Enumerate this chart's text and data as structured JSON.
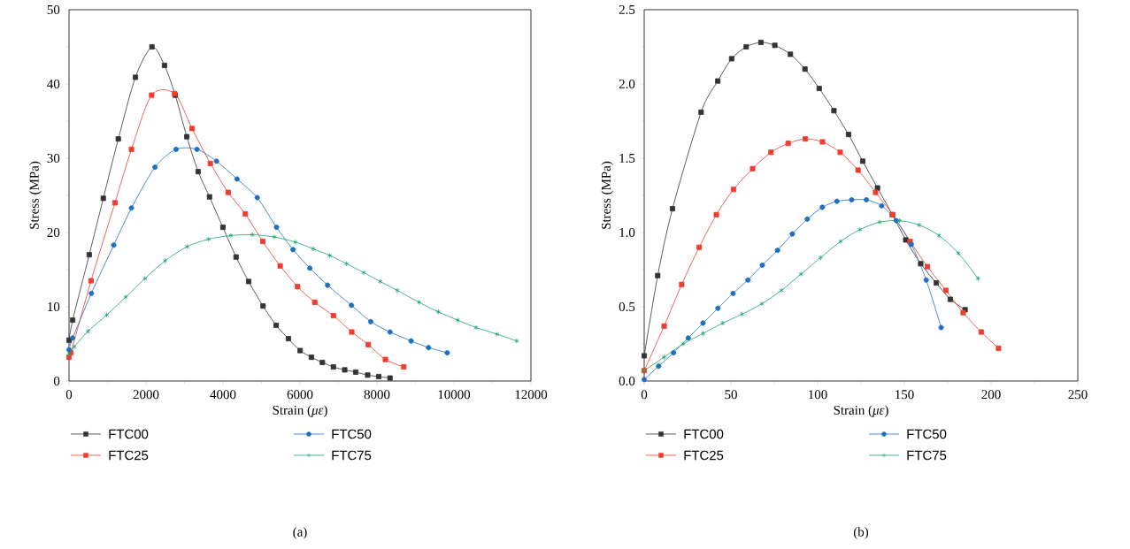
{
  "chart_data": [
    {
      "type": "line",
      "xlabel": "Strain (*με*)",
      "ylabel": "Stress (MPa)",
      "annotations": [
        "(a)"
      ],
      "xlim": [
        0,
        12000
      ],
      "ylim": [
        0,
        50
      ],
      "xticks": [
        0,
        2000,
        4000,
        6000,
        8000,
        10000,
        12000
      ],
      "yticks": [
        0,
        10,
        20,
        30,
        40,
        50
      ],
      "legend": "bottom",
      "grid": false,
      "line_style": "solid",
      "series": [
        {
          "name": "FTC00",
          "color": "#333333",
          "marker": "square",
          "x": [
            0,
            95,
            525,
            890,
            1280,
            1725,
            2154,
            2480,
            2758,
            3060,
            3355,
            3649,
            3998,
            4340,
            4666,
            5040,
            5382,
            5700,
            6002,
            6296,
            6582,
            6868,
            7162,
            7448,
            7758,
            8045,
            8339
          ],
          "values": [
            5.5,
            8.2,
            17.0,
            24.6,
            32.6,
            40.9,
            45.0,
            42.5,
            38.5,
            32.9,
            28.2,
            24.8,
            20.7,
            16.7,
            13.4,
            10.1,
            7.5,
            5.7,
            4.1,
            3.2,
            2.5,
            1.9,
            1.5,
            1.2,
            0.8,
            0.6,
            0.4
          ]
        },
        {
          "name": "FTC25",
          "color": "#f03c2e",
          "marker": "square",
          "x": [
            0,
            48,
            572,
            1192,
            1622,
            2146,
            2742,
            3196,
            3672,
            4134,
            4579,
            5032,
            5485,
            5938,
            6383,
            6868,
            7345,
            7774,
            8219,
            8696
          ],
          "values": [
            3.2,
            3.8,
            13.5,
            24.0,
            31.2,
            38.5,
            38.7,
            34.0,
            29.3,
            25.4,
            22.5,
            18.8,
            15.5,
            12.7,
            10.6,
            8.8,
            6.6,
            4.9,
            2.9,
            1.9
          ]
        },
        {
          "name": "FTC50",
          "color": "#1f6fbf",
          "marker": "circle",
          "x": [
            0,
            95,
            580,
            1161,
            1622,
            2234,
            2782,
            3323,
            3831,
            4364,
            4889,
            5390,
            5819,
            6256,
            6717,
            7337,
            7838,
            8339,
            8887,
            9340,
            9825
          ],
          "values": [
            4.2,
            5.8,
            11.8,
            18.3,
            23.3,
            28.8,
            31.2,
            31.2,
            29.6,
            27.2,
            24.7,
            20.7,
            17.7,
            15.2,
            12.9,
            10.2,
            8.0,
            6.6,
            5.4,
            4.5,
            3.8
          ]
        },
        {
          "name": "FTC75",
          "color": "#1aa56a",
          "marker": "cross",
          "x": [
            0,
            135,
            493,
            978,
            1471,
            1971,
            2496,
            3068,
            3625,
            4205,
            4762,
            5334,
            5882,
            6343,
            6773,
            7210,
            7655,
            8084,
            8529,
            9094,
            9595,
            10095,
            10572,
            11121,
            11630
          ],
          "values": [
            3.6,
            4.6,
            6.7,
            8.9,
            11.3,
            13.8,
            16.2,
            18.1,
            19.1,
            19.6,
            19.7,
            19.4,
            18.7,
            17.8,
            16.9,
            15.8,
            14.6,
            13.4,
            12.2,
            10.6,
            9.3,
            8.2,
            7.2,
            6.3,
            5.4
          ]
        }
      ]
    },
    {
      "type": "line",
      "xlabel": "Strain (*με*)",
      "ylabel": "Stress (MPa)",
      "annotations": [
        "(b)"
      ],
      "xlim": [
        0,
        250
      ],
      "ylim": [
        0,
        2.5
      ],
      "xticks": [
        0,
        50,
        100,
        150,
        200,
        250
      ],
      "yticks": [
        {
          "value": 0,
          "label": "0.0"
        },
        {
          "value": 0.5,
          "label": "0.5"
        },
        {
          "value": 1,
          "label": "1.0"
        },
        {
          "value": 1.5,
          "label": "1.5"
        },
        {
          "value": 2,
          "label": "2.0"
        },
        {
          "value": 2.5,
          "label": "2.5"
        }
      ],
      "legend": "bottom",
      "grid": false,
      "line_style": "solid",
      "series": [
        {
          "name": "FTC00",
          "color": "#333333",
          "marker": "square",
          "x": [
            0,
            7.8,
            16.3,
            32.8,
            42.4,
            50.4,
            58.8,
            67.3,
            75.3,
            84.3,
            92.7,
            100.9,
            109.4,
            117.8,
            126.0,
            134.5,
            143.1,
            150.8,
            159.4,
            168.4,
            176.5,
            185.0
          ],
          "values": [
            0.17,
            0.71,
            1.16,
            1.81,
            2.02,
            2.17,
            2.25,
            2.28,
            2.26,
            2.2,
            2.1,
            1.97,
            1.82,
            1.66,
            1.48,
            1.3,
            1.12,
            0.95,
            0.79,
            0.66,
            0.55,
            0.48
          ]
        },
        {
          "name": "FTC25",
          "color": "#f03c2e",
          "marker": "square",
          "x": [
            0,
            11.5,
            21.6,
            31.7,
            41.6,
            51.5,
            62.5,
            73.1,
            83.0,
            92.9,
            102.8,
            113.0,
            123.3,
            133.4,
            143.3,
            153.3,
            163.3,
            174.0,
            183.9,
            194.3,
            204.3
          ],
          "values": [
            0.07,
            0.37,
            0.65,
            0.9,
            1.12,
            1.29,
            1.43,
            1.54,
            1.6,
            1.63,
            1.61,
            1.54,
            1.42,
            1.27,
            1.12,
            0.94,
            0.77,
            0.61,
            0.46,
            0.33,
            0.22
          ]
        },
        {
          "name": "FTC50",
          "color": "#1f6fbf",
          "marker": "circle",
          "x": [
            0,
            8.3,
            16.9,
            25.4,
            33.9,
            42.5,
            51.2,
            59.8,
            68.1,
            76.9,
            85.4,
            94.0,
            102.7,
            111.1,
            119.6,
            128.1,
            136.9,
            145.3,
            154.0,
            162.6,
            171.2
          ],
          "values": [
            0.01,
            0.1,
            0.19,
            0.29,
            0.39,
            0.49,
            0.59,
            0.68,
            0.78,
            0.88,
            0.99,
            1.09,
            1.17,
            1.21,
            1.22,
            1.22,
            1.18,
            1.08,
            0.92,
            0.68,
            0.36
          ]
        },
        {
          "name": "FTC75",
          "color": "#1aa56a",
          "marker": "cross",
          "x": [
            0,
            11.4,
            22.5,
            33.9,
            45.3,
            56.4,
            67.8,
            79.1,
            90.4,
            101.7,
            113.2,
            124.4,
            135.8,
            147.2,
            158.6,
            169.9,
            181.2,
            192.5
          ],
          "values": [
            0.07,
            0.16,
            0.25,
            0.32,
            0.39,
            0.45,
            0.52,
            0.61,
            0.72,
            0.83,
            0.94,
            1.02,
            1.07,
            1.08,
            1.05,
            0.98,
            0.86,
            0.69
          ]
        }
      ]
    }
  ]
}
